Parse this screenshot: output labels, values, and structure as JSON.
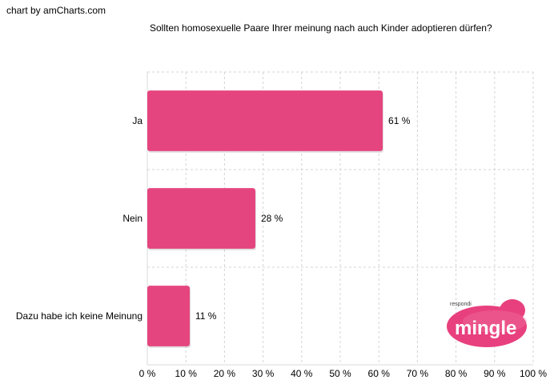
{
  "credit": "chart by amCharts.com",
  "logo": {
    "small_text": "respondi",
    "text": "mingle",
    "color": "#e8407e"
  },
  "chart_data": {
    "type": "bar",
    "orientation": "horizontal",
    "title": "Sollten homosexuelle Paare Ihrer meinung nach auch Kinder adoptieren dürfen?",
    "categories": [
      "Ja",
      "Nein",
      "Dazu habe ich keine Meinung"
    ],
    "values": [
      61,
      28,
      11
    ],
    "value_labels": [
      "61 %",
      "28 %",
      "11 %"
    ],
    "xlim": [
      0,
      100
    ],
    "xticks": [
      "0 %",
      "10 %",
      "20 %",
      "30 %",
      "40 %",
      "50 %",
      "60 %",
      "70 %",
      "80 %",
      "90 %",
      "100 %"
    ],
    "grid": true,
    "bar_color": "#e5457f"
  }
}
